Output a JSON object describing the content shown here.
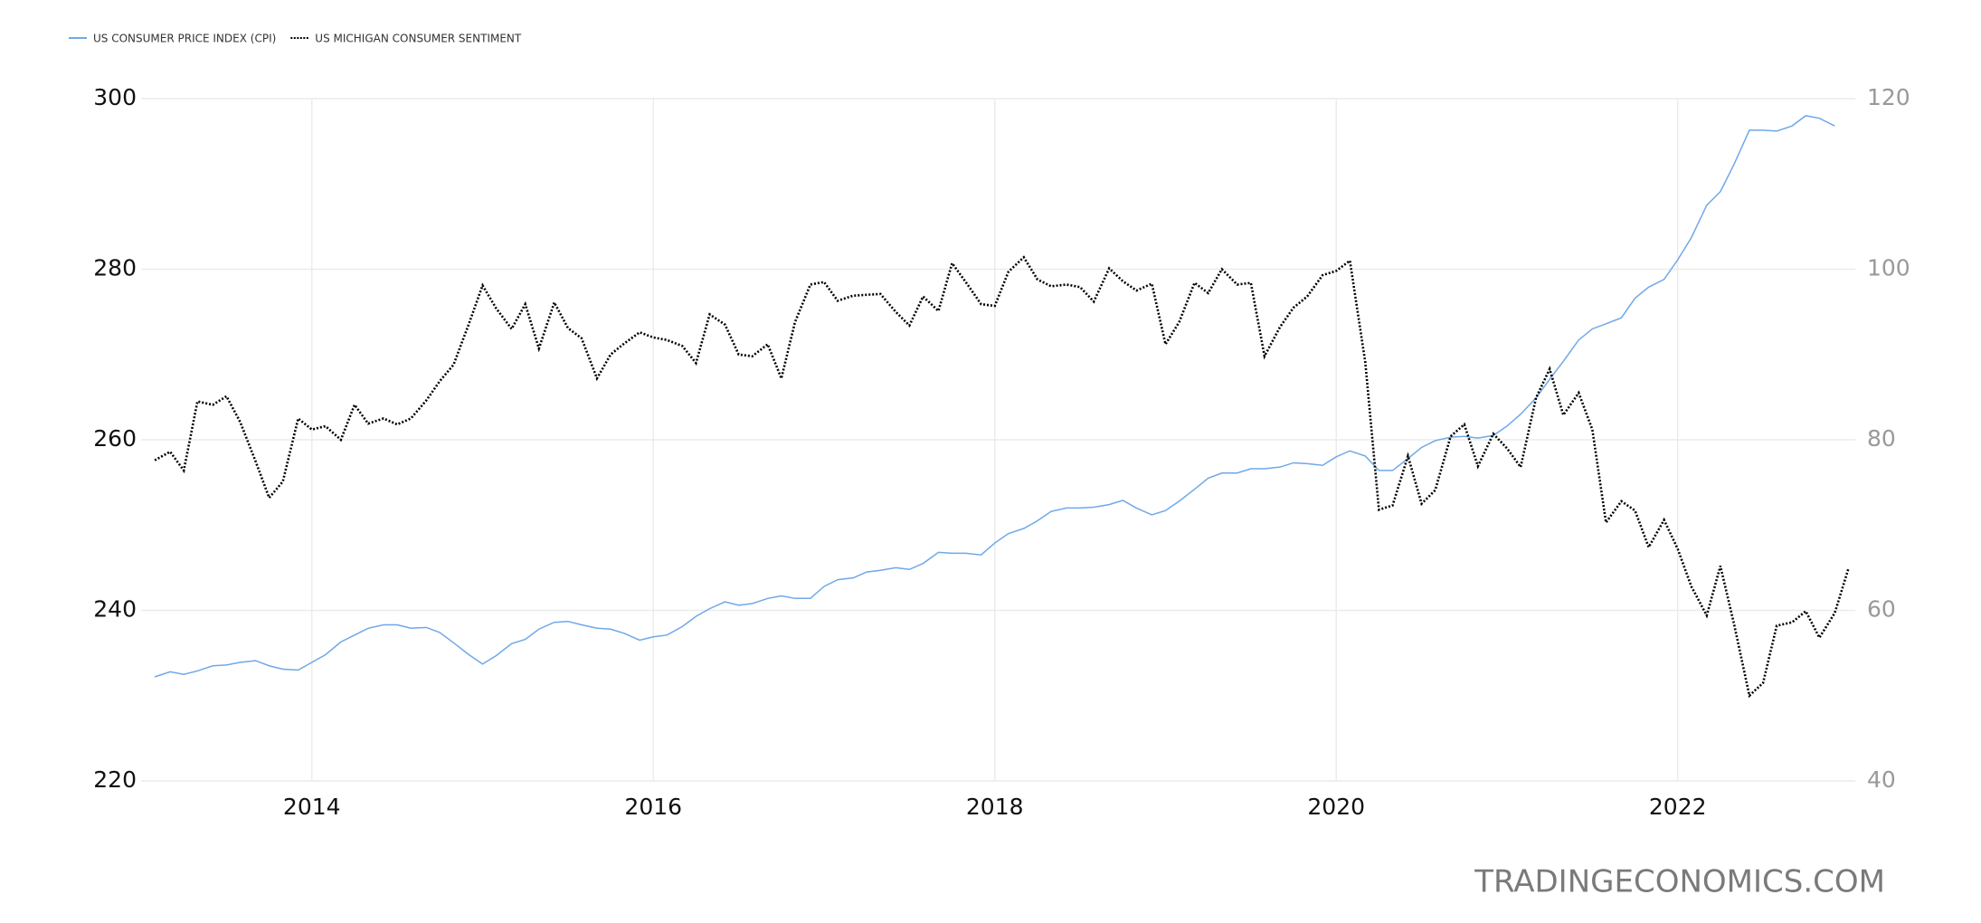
{
  "chart_data": {
    "type": "line",
    "watermark": "TRADINGECONOMICS.COM",
    "x": [
      2013.08,
      2013.17,
      2013.25,
      2013.33,
      2013.42,
      2013.5,
      2013.58,
      2013.67,
      2013.75,
      2013.83,
      2013.92,
      2014.0,
      2014.08,
      2014.17,
      2014.25,
      2014.33,
      2014.42,
      2014.5,
      2014.58,
      2014.67,
      2014.75,
      2014.83,
      2014.92,
      2015.0,
      2015.08,
      2015.17,
      2015.25,
      2015.33,
      2015.42,
      2015.5,
      2015.58,
      2015.67,
      2015.75,
      2015.83,
      2015.92,
      2016.0,
      2016.08,
      2016.17,
      2016.25,
      2016.33,
      2016.42,
      2016.5,
      2016.58,
      2016.67,
      2016.75,
      2016.83,
      2016.92,
      2017.0,
      2017.08,
      2017.17,
      2017.25,
      2017.33,
      2017.42,
      2017.5,
      2017.58,
      2017.67,
      2017.75,
      2017.83,
      2017.92,
      2018.0,
      2018.08,
      2018.17,
      2018.25,
      2018.33,
      2018.42,
      2018.5,
      2018.58,
      2018.67,
      2018.75,
      2018.83,
      2018.92,
      2019.0,
      2019.08,
      2019.17,
      2019.25,
      2019.33,
      2019.42,
      2019.5,
      2019.58,
      2019.67,
      2019.75,
      2019.83,
      2019.92,
      2020.0,
      2020.08,
      2020.17,
      2020.25,
      2020.33,
      2020.42,
      2020.5,
      2020.58,
      2020.67,
      2020.75,
      2020.83,
      2020.92,
      2021.0,
      2021.08,
      2021.17,
      2021.25,
      2021.33,
      2021.42,
      2021.5,
      2021.58,
      2021.67,
      2021.75,
      2021.83,
      2021.92,
      2022.0,
      2022.08,
      2022.17,
      2022.25,
      2022.33,
      2022.42,
      2022.5,
      2022.58,
      2022.67,
      2022.75,
      2022.83,
      2022.92,
      2023.0
    ],
    "series": [
      {
        "name": "US CONSUMER PRICE INDEX (CPI)",
        "color": "#6fa8e8",
        "axis": "y",
        "values": [
          232.2,
          232.8,
          232.5,
          232.9,
          233.5,
          233.6,
          233.9,
          234.1,
          233.5,
          233.1,
          233.0,
          233.9,
          234.8,
          236.3,
          237.1,
          237.9,
          238.3,
          238.3,
          237.9,
          238.0,
          237.4,
          236.2,
          234.8,
          233.7,
          234.7,
          236.1,
          236.6,
          237.8,
          238.6,
          238.7,
          238.3,
          237.9,
          237.8,
          237.3,
          236.5,
          236.9,
          237.1,
          238.1,
          239.3,
          240.2,
          241.0,
          240.6,
          240.8,
          241.4,
          241.7,
          241.4,
          241.4,
          242.8,
          243.6,
          243.8,
          244.5,
          244.7,
          245.0,
          244.8,
          245.5,
          246.8,
          246.7,
          246.7,
          246.5,
          247.9,
          249.0,
          249.6,
          250.5,
          251.6,
          252.0,
          252.0,
          252.1,
          252.4,
          252.9,
          252.0,
          251.2,
          251.7,
          252.8,
          254.2,
          255.5,
          256.1,
          256.1,
          256.6,
          256.6,
          256.8,
          257.3,
          257.2,
          257.0,
          258.0,
          258.7,
          258.1,
          256.4,
          256.4,
          257.8,
          259.1,
          259.9,
          260.3,
          260.4,
          260.2,
          260.5,
          261.6,
          263.0,
          264.9,
          267.1,
          269.2,
          271.7,
          273.0,
          273.6,
          274.3,
          276.6,
          277.9,
          278.8,
          281.1,
          283.7,
          287.5,
          289.1,
          292.3,
          296.3,
          296.3,
          296.2,
          296.8,
          298.0,
          297.7,
          296.8,
          null
        ]
      },
      {
        "name": "US MICHIGAN CONSUMER SENTIMENT",
        "color": "#000000",
        "axis": "y2",
        "values": [
          77.6,
          78.6,
          76.4,
          84.5,
          84.1,
          85.1,
          82.1,
          77.5,
          73.2,
          75.1,
          82.5,
          81.2,
          81.6,
          80.0,
          84.1,
          81.9,
          82.5,
          81.8,
          82.5,
          84.6,
          86.9,
          88.8,
          93.6,
          98.1,
          95.4,
          93.0,
          95.9,
          90.7,
          96.1,
          93.1,
          91.9,
          87.2,
          90.0,
          91.3,
          92.6,
          92.0,
          91.7,
          91.0,
          89.0,
          94.7,
          93.5,
          90.0,
          89.8,
          91.2,
          87.2,
          93.8,
          98.2,
          98.5,
          96.3,
          96.9,
          97.0,
          97.1,
          95.0,
          93.4,
          96.8,
          95.1,
          100.7,
          98.5,
          95.9,
          95.7,
          99.7,
          101.4,
          98.8,
          98.0,
          98.2,
          97.9,
          96.2,
          100.1,
          98.6,
          97.5,
          98.3,
          91.2,
          93.8,
          98.4,
          97.2,
          100.0,
          98.2,
          98.4,
          89.8,
          93.2,
          95.5,
          96.8,
          99.3,
          99.8,
          101.0,
          89.1,
          71.8,
          72.3,
          78.1,
          72.5,
          74.1,
          80.4,
          81.8,
          76.9,
          80.7,
          79.0,
          76.8,
          84.9,
          88.3,
          82.9,
          85.5,
          81.2,
          70.3,
          72.8,
          71.7,
          67.4,
          70.6,
          67.2,
          62.8,
          59.4,
          65.2,
          58.4,
          50.0,
          51.5,
          58.2,
          58.6,
          59.9,
          56.8,
          59.7,
          64.9
        ]
      }
    ],
    "xlim": [
      2013,
      2023.04
    ],
    "xticks": [
      2014,
      2016,
      2018,
      2020,
      2022
    ],
    "ylim": [
      220,
      300
    ],
    "yticks": [
      220,
      240,
      260,
      280,
      300
    ],
    "y2lim": [
      40,
      120
    ],
    "y2ticks": [
      40,
      60,
      80,
      100,
      120
    ],
    "grid": true,
    "legend": "top-left"
  }
}
